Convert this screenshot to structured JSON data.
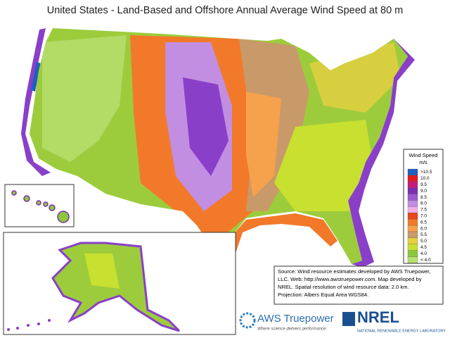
{
  "title": "United States - Land-Based and Offshore Annual Average Wind Speed at 80 m",
  "legend": {
    "title": "Wind Speed",
    "unit": "m/s",
    "items": [
      {
        "label": ">10.5",
        "color": "#1f5fbf"
      },
      {
        "label": "10.0",
        "color": "#e31a1c"
      },
      {
        "label": "9.5",
        "color": "#c51b7d"
      },
      {
        "label": "9.0",
        "color": "#7b2fb0"
      },
      {
        "label": "8.5",
        "color": "#9b59d0"
      },
      {
        "label": "8.0",
        "color": "#c28ee2"
      },
      {
        "label": "7.5",
        "color": "#f0b0e6"
      },
      {
        "label": "7.0",
        "color": "#e8461c"
      },
      {
        "label": "6.5",
        "color": "#f2792a"
      },
      {
        "label": "6.0",
        "color": "#f6a24c"
      },
      {
        "label": "5.5",
        "color": "#c89a6a"
      },
      {
        "label": "5.0",
        "color": "#e6d040"
      },
      {
        "label": "4.5",
        "color": "#c8e030"
      },
      {
        "label": "4.0",
        "color": "#8cc83c"
      },
      {
        "label": "< 4.0",
        "color": "#b8e070"
      }
    ]
  },
  "source": {
    "lines": [
      "Source: Wind resource estimates developed by AWS Truepower,",
      "LLC.  Web: http://www.awstruepower.com.  Map developed by",
      "NREL.  Spatial resolution of wind resource data: 2.0 km.",
      "Projection: Albers Equal Area WGS84."
    ]
  },
  "logos": {
    "aws_name": "AWS Truepower",
    "aws_tagline": "Where science delivers performance.",
    "nrel_name": "NREL",
    "nrel_full": "NATIONAL RENEWABLE ENERGY LABORATORY"
  }
}
